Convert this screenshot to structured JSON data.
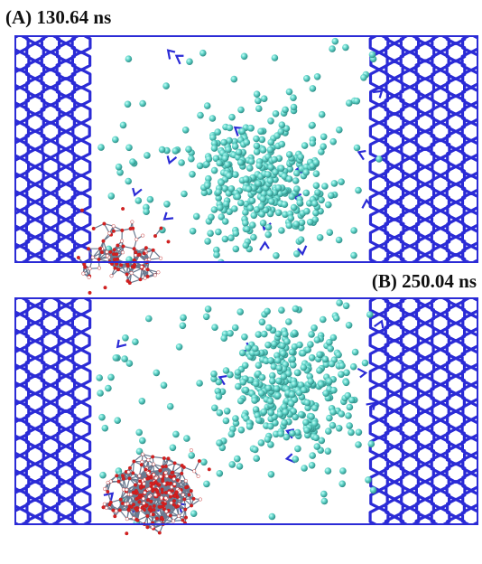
{
  "panels": [
    {
      "label": "(A) 130.64 ns"
    },
    {
      "label": "(B) 250.04 ns"
    }
  ]
}
